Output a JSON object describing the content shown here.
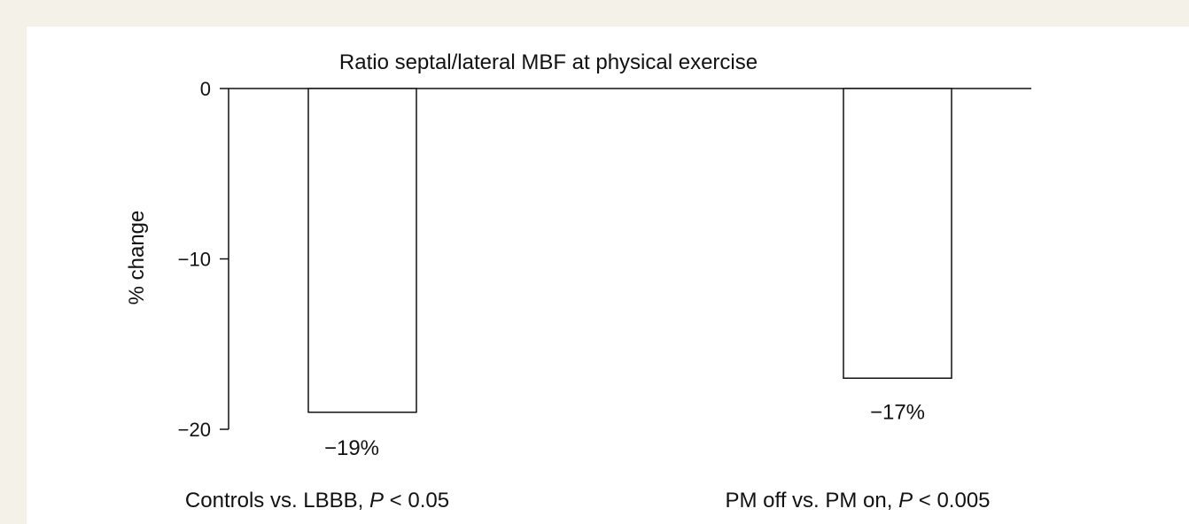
{
  "chart_data": {
    "type": "bar",
    "title": "Ratio septal/lateral MBF at physical exercise",
    "ylabel": "% change",
    "xlabel": "",
    "ylim": [
      -20,
      0
    ],
    "yticks": [
      "0",
      "−10",
      "−20"
    ],
    "grid": false,
    "bar_fill": "#ffffff",
    "bar_stroke": "#111111",
    "categories": [
      {
        "prefix": "Controls vs. LBBB, ",
        "p": "P",
        "suffix": " < 0.05"
      },
      {
        "prefix": "PM off vs. PM on, ",
        "p": "P",
        "suffix": " < 0.005"
      }
    ],
    "values": [
      -19,
      -17
    ],
    "data_labels": [
      "−19%",
      "−17%"
    ]
  }
}
